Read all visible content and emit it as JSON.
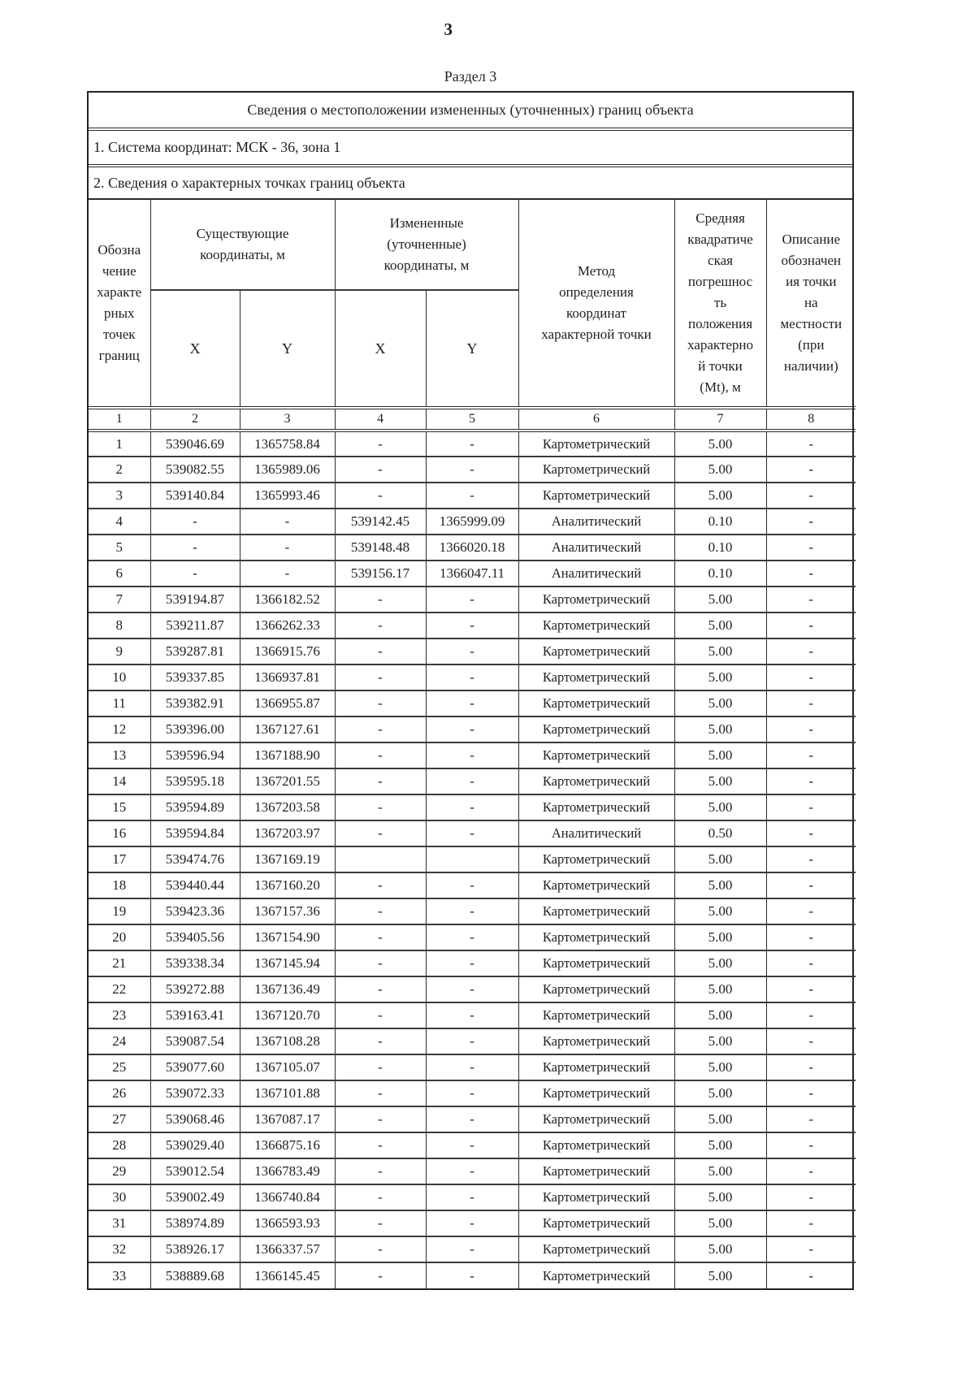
{
  "page": {
    "number": "3",
    "section_title": "Раздел 3"
  },
  "table": {
    "title": "Сведения о местоположении измененных (уточненных) границ объекта",
    "coord_system_note": "1. Система координат: МСК - 36, зона 1",
    "points_note": "2. Сведения о характерных точках границ объекта",
    "headers": {
      "point_designation": "Обозна\nчение\nхаракте\nрных\nточек\nграниц",
      "existing_group": "Существующие\nкоординаты, м",
      "changed_group": "Измененные\n(уточненные)\nкоординаты, м",
      "x": "X",
      "y": "Y",
      "method": "Метод\nопределения\nкоординат\nхарактерной точки",
      "mt": "Средняя\nквадратиче\nская\nпогрешнос\nть\nположения\nхарактерно\nй точки\n(Mt), м",
      "description": "Описание\nобозначен\nия точки\nна\nместности\n(при\nналичии)"
    },
    "column_numbers": [
      "1",
      "2",
      "3",
      "4",
      "5",
      "6",
      "7",
      "8"
    ],
    "rows": [
      [
        "1",
        "539046.69",
        "1365758.84",
        "-",
        "-",
        "Картометрический",
        "5.00",
        "-"
      ],
      [
        "2",
        "539082.55",
        "1365989.06",
        "-",
        "-",
        "Картометрический",
        "5.00",
        "-"
      ],
      [
        "3",
        "539140.84",
        "1365993.46",
        "-",
        "-",
        "Картометрический",
        "5.00",
        "-"
      ],
      [
        "4",
        "-",
        "-",
        "539142.45",
        "1365999.09",
        "Аналитический",
        "0.10",
        "-"
      ],
      [
        "5",
        "-",
        "-",
        "539148.48",
        "1366020.18",
        "Аналитический",
        "0.10",
        "-"
      ],
      [
        "6",
        "-",
        "-",
        "539156.17",
        "1366047.11",
        "Аналитический",
        "0.10",
        "-"
      ],
      [
        "7",
        "539194.87",
        "1366182.52",
        "-",
        "-",
        "Картометрический",
        "5.00",
        "-"
      ],
      [
        "8",
        "539211.87",
        "1366262.33",
        "-",
        "-",
        "Картометрический",
        "5.00",
        "-"
      ],
      [
        "9",
        "539287.81",
        "1366915.76",
        "-",
        "-",
        "Картометрический",
        "5.00",
        "-"
      ],
      [
        "10",
        "539337.85",
        "1366937.81",
        "-",
        "-",
        "Картометрический",
        "5.00",
        "-"
      ],
      [
        "11",
        "539382.91",
        "1366955.87",
        "-",
        "-",
        "Картометрический",
        "5.00",
        "-"
      ],
      [
        "12",
        "539396.00",
        "1367127.61",
        "-",
        "-",
        "Картометрический",
        "5.00",
        "-"
      ],
      [
        "13",
        "539596.94",
        "1367188.90",
        "-",
        "-",
        "Картометрический",
        "5.00",
        "-"
      ],
      [
        "14",
        "539595.18",
        "1367201.55",
        "-",
        "-",
        "Картометрический",
        "5.00",
        "-"
      ],
      [
        "15",
        "539594.89",
        "1367203.58",
        "-",
        "-",
        "Картометрический",
        "5.00",
        "-"
      ],
      [
        "16",
        "539594.84",
        "1367203.97",
        "-",
        "-",
        "Аналитический",
        "0.50",
        "-"
      ],
      [
        "17",
        "539474.76",
        "1367169.19",
        "",
        "",
        "Картометрический",
        "5.00",
        "-"
      ],
      [
        "18",
        "539440.44",
        "1367160.20",
        "-",
        "-",
        "Картометрический",
        "5.00",
        "-"
      ],
      [
        "19",
        "539423.36",
        "1367157.36",
        "-",
        "-",
        "Картометрический",
        "5.00",
        "-"
      ],
      [
        "20",
        "539405.56",
        "1367154.90",
        "-",
        "-",
        "Картометрический",
        "5.00",
        "-"
      ],
      [
        "21",
        "539338.34",
        "1367145.94",
        "-",
        "-",
        "Картометрический",
        "5.00",
        "-"
      ],
      [
        "22",
        "539272.88",
        "1367136.49",
        "-",
        "-",
        "Картометрический",
        "5.00",
        "-"
      ],
      [
        "23",
        "539163.41",
        "1367120.70",
        "-",
        "-",
        "Картометрический",
        "5.00",
        "-"
      ],
      [
        "24",
        "539087.54",
        "1367108.28",
        "-",
        "-",
        "Картометрический",
        "5.00",
        "-"
      ],
      [
        "25",
        "539077.60",
        "1367105.07",
        "-",
        "-",
        "Картометрический",
        "5.00",
        "-"
      ],
      [
        "26",
        "539072.33",
        "1367101.88",
        "-",
        "-",
        "Картометрический",
        "5.00",
        "-"
      ],
      [
        "27",
        "539068.46",
        "1367087.17",
        "-",
        "-",
        "Картометрический",
        "5.00",
        "-"
      ],
      [
        "28",
        "539029.40",
        "1366875.16",
        "-",
        "-",
        "Картометрический",
        "5.00",
        "-"
      ],
      [
        "29",
        "539012.54",
        "1366783.49",
        "-",
        "-",
        "Картометрический",
        "5.00",
        "-"
      ],
      [
        "30",
        "539002.49",
        "1366740.84",
        "-",
        "-",
        "Картометрический",
        "5.00",
        "-"
      ],
      [
        "31",
        "538974.89",
        "1366593.93",
        "-",
        "-",
        "Картометрический",
        "5.00",
        "-"
      ],
      [
        "32",
        "538926.17",
        "1366337.57",
        "-",
        "-",
        "Картометрический",
        "5.00",
        "-"
      ],
      [
        "33",
        "538889.68",
        "1366145.45",
        "-",
        "-",
        "Картометрический",
        "5.00",
        "-"
      ]
    ]
  }
}
